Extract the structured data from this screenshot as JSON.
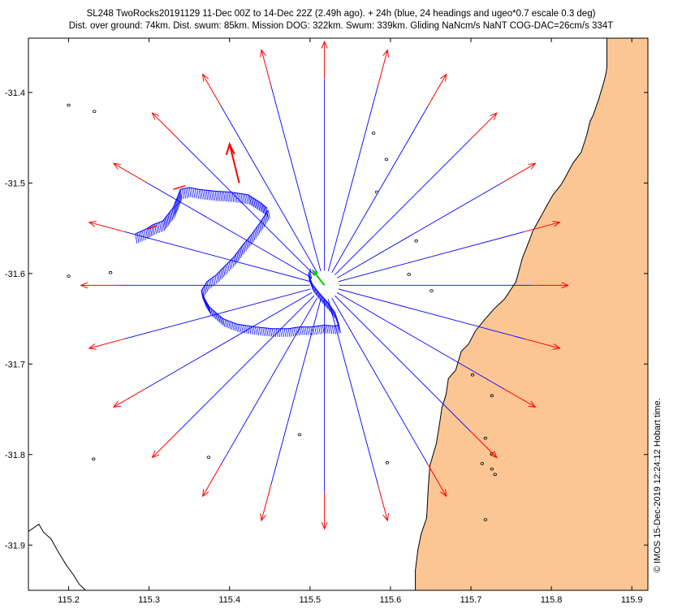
{
  "header": {
    "line1": "SL248 TwoRocks20191129 11-Dec 00Z to 14-Dec 22Z (2.49h ago). + 24h (blue, 24 headings and ugeo*0.7 escale 0.3 deg)",
    "line2": "Dist. over ground: 74km. Dist. swum: 85km. Mission DOG: 322km. Swum: 339km. Gliding NaNcm/s NaNT COG-DAC=26cm/s 334T"
  },
  "credit": "© IMOS 15-Dec-2019 12:24:12 Hobart time.",
  "colors": {
    "land": "#fbc693",
    "track": "#0000ff",
    "heading": "#ff0000",
    "current": "#00cc00",
    "coast": "#000000"
  },
  "map": {
    "lon_range": [
      115.15,
      115.92
    ],
    "lat_range": [
      -31.95,
      -31.34
    ],
    "x_ticks": [
      "115.2",
      "115.3",
      "115.4",
      "115.5",
      "115.6",
      "115.7",
      "115.8",
      "115.9"
    ],
    "y_ticks": [
      "-31.4",
      "-31.5",
      "-31.6",
      "-31.7",
      "-31.8",
      "-31.9"
    ],
    "center": {
      "lon": 115.518,
      "lat": -31.613
    },
    "headings_count": 24,
    "current_arrow": {
      "from": [
        115.518,
        -31.613
      ],
      "to": [
        115.503,
        -31.596
      ]
    },
    "coastline": [
      [
        115.869,
        -31.34
      ],
      [
        115.869,
        -31.372
      ],
      [
        115.868,
        -31.378
      ],
      [
        115.866,
        -31.386
      ],
      [
        115.859,
        -31.407
      ],
      [
        115.852,
        -31.425
      ],
      [
        115.848,
        -31.432
      ],
      [
        115.844,
        -31.447
      ],
      [
        115.837,
        -31.466
      ],
      [
        115.827,
        -31.478
      ],
      [
        115.816,
        -31.496
      ],
      [
        115.812,
        -31.502
      ],
      [
        115.802,
        -31.513
      ],
      [
        115.795,
        -31.524
      ],
      [
        115.787,
        -31.537
      ],
      [
        115.777,
        -31.553
      ],
      [
        115.772,
        -31.565
      ],
      [
        115.764,
        -31.583
      ],
      [
        115.756,
        -31.609
      ],
      [
        115.742,
        -31.628
      ],
      [
        115.729,
        -31.639
      ],
      [
        115.717,
        -31.651
      ],
      [
        115.706,
        -31.663
      ],
      [
        115.697,
        -31.678
      ],
      [
        115.688,
        -31.686
      ],
      [
        115.681,
        -31.707
      ],
      [
        115.672,
        -31.716
      ],
      [
        115.669,
        -31.734
      ],
      [
        115.664,
        -31.748
      ],
      [
        115.661,
        -31.766
      ],
      [
        115.657,
        -31.788
      ],
      [
        115.649,
        -31.812
      ],
      [
        115.647,
        -31.836
      ],
      [
        115.645,
        -31.87
      ],
      [
        115.638,
        -31.888
      ],
      [
        115.634,
        -31.906
      ],
      [
        115.631,
        -31.928
      ],
      [
        115.631,
        -31.95
      ]
    ],
    "coast_sw": [
      [
        115.15,
        -31.885
      ],
      [
        115.163,
        -31.877
      ],
      [
        115.169,
        -31.886
      ],
      [
        115.178,
        -31.893
      ],
      [
        115.188,
        -31.909
      ],
      [
        115.197,
        -31.922
      ],
      [
        115.206,
        -31.933
      ],
      [
        115.213,
        -31.943
      ],
      [
        115.221,
        -31.95
      ]
    ],
    "islets": [
      [
        115.579,
        -31.445
      ],
      [
        115.595,
        -31.474
      ],
      [
        115.583,
        -31.51
      ],
      [
        115.632,
        -31.564
      ],
      [
        115.623,
        -31.601
      ],
      [
        115.651,
        -31.619
      ],
      [
        115.702,
        -31.712
      ],
      [
        115.726,
        -31.735
      ],
      [
        115.718,
        -31.782
      ],
      [
        115.726,
        -31.799
      ],
      [
        115.714,
        -31.81
      ],
      [
        115.726,
        -31.816
      ],
      [
        115.73,
        -31.822
      ],
      [
        115.718,
        -31.872
      ],
      [
        115.232,
        -31.421
      ],
      [
        115.2,
        -31.414
      ],
      [
        115.252,
        -31.599
      ],
      [
        115.2,
        -31.603
      ],
      [
        115.231,
        -31.805
      ],
      [
        115.374,
        -31.803
      ],
      [
        115.487,
        -31.778
      ],
      [
        115.596,
        -31.809
      ]
    ],
    "track_a": [
      [
        115.283,
        -31.556
      ],
      [
        115.296,
        -31.551
      ],
      [
        115.305,
        -31.546
      ],
      [
        115.317,
        -31.542
      ],
      [
        115.33,
        -31.527
      ],
      [
        115.339,
        -31.507
      ],
      [
        115.35,
        -31.505
      ],
      [
        115.362,
        -31.507
      ],
      [
        115.382,
        -31.509
      ],
      [
        115.401,
        -31.51
      ],
      [
        115.423,
        -31.513
      ],
      [
        115.439,
        -31.522
      ],
      [
        115.447,
        -31.528
      ]
    ],
    "track_b": [
      [
        115.448,
        -31.53
      ],
      [
        115.437,
        -31.545
      ],
      [
        115.428,
        -31.556
      ],
      [
        115.416,
        -31.569
      ],
      [
        115.405,
        -31.582
      ],
      [
        115.394,
        -31.592
      ],
      [
        115.384,
        -31.601
      ],
      [
        115.372,
        -31.609
      ],
      [
        115.365,
        -31.619
      ],
      [
        115.369,
        -31.628
      ],
      [
        115.375,
        -31.637
      ],
      [
        115.392,
        -31.65
      ],
      [
        115.41,
        -31.656
      ],
      [
        115.432,
        -31.659
      ],
      [
        115.453,
        -31.661
      ],
      [
        115.473,
        -31.661
      ],
      [
        115.487,
        -31.659
      ],
      [
        115.501,
        -31.659
      ],
      [
        115.518,
        -31.657
      ],
      [
        115.53,
        -31.658
      ],
      [
        115.536,
        -31.657
      ],
      [
        115.531,
        -31.643
      ],
      [
        115.522,
        -31.632
      ],
      [
        115.511,
        -31.621
      ],
      [
        115.503,
        -31.612
      ],
      [
        115.498,
        -31.601
      ],
      [
        115.501,
        -31.595
      ]
    ]
  }
}
